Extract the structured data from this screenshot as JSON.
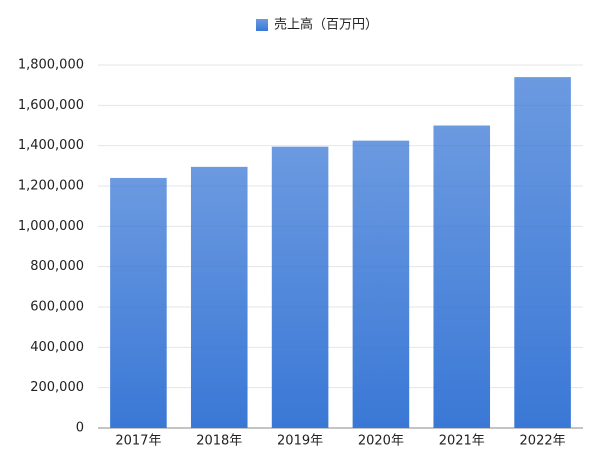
{
  "chart_data": {
    "type": "bar",
    "categories": [
      "2017年",
      "2018年",
      "2019年",
      "2020年",
      "2021年",
      "2022年"
    ],
    "series": [
      {
        "name": "売上高（百万円）",
        "color": "#3a78d6",
        "values": [
          1240000,
          1295000,
          1395000,
          1425000,
          1500000,
          1740000
        ]
      }
    ],
    "ylim": [
      0,
      1800000
    ],
    "yticks": [
      0,
      {
        "value": 200000,
        "label": "200,000"
      },
      {
        "value": 400000,
        "label": "400,000"
      },
      {
        "value": 600000,
        "label": "600,000"
      },
      {
        "value": 800000,
        "label": "800,000"
      },
      {
        "value": 1000000,
        "label": "1,000,000"
      },
      {
        "value": 1200000,
        "label": "1,200,000"
      },
      {
        "value": 1400000,
        "label": "1,400,000"
      },
      {
        "value": 1600000,
        "label": "1,600,000"
      },
      {
        "value": 1800000,
        "label": "1,800,000"
      }
    ],
    "grid": true,
    "legend": "top"
  }
}
